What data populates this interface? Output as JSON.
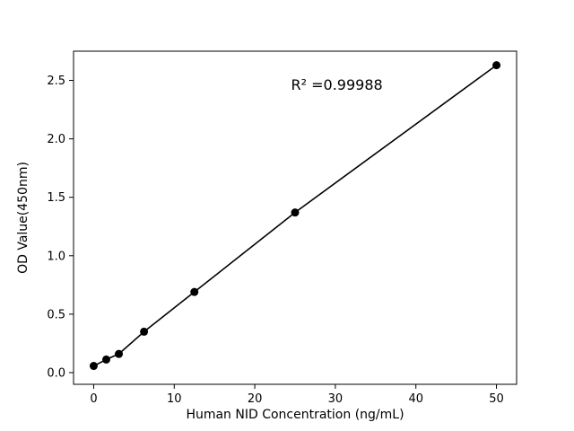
{
  "chart_data": {
    "type": "scatter",
    "title": "",
    "xlabel": "Human NID Concentration (ng/mL)",
    "ylabel": "OD Value(450nm)",
    "x": [
      0,
      1.56,
      3.125,
      6.25,
      12.5,
      25,
      50
    ],
    "y": [
      0.057,
      0.112,
      0.16,
      0.35,
      0.69,
      1.37,
      2.63
    ],
    "line_through_points": true,
    "xlim": [
      -2.5,
      52.5
    ],
    "ylim": [
      -0.1,
      2.75
    ],
    "xticks": [
      0,
      10,
      20,
      30,
      40,
      50
    ],
    "xtick_labels": [
      "0",
      "10",
      "20",
      "30",
      "40",
      "50"
    ],
    "yticks": [
      0.0,
      0.5,
      1.0,
      1.5,
      2.0,
      2.5
    ],
    "ytick_labels": [
      "0.0",
      "0.5",
      "1.0",
      "1.5",
      "2.0",
      "2.5"
    ],
    "annotation": {
      "text": "R² =0.99988",
      "x": 24.5,
      "y": 2.42
    },
    "legend": null,
    "grid": false,
    "marker_color": "#000000",
    "line_color": "#000000",
    "axis_color": "#000000",
    "background": "#ffffff"
  }
}
